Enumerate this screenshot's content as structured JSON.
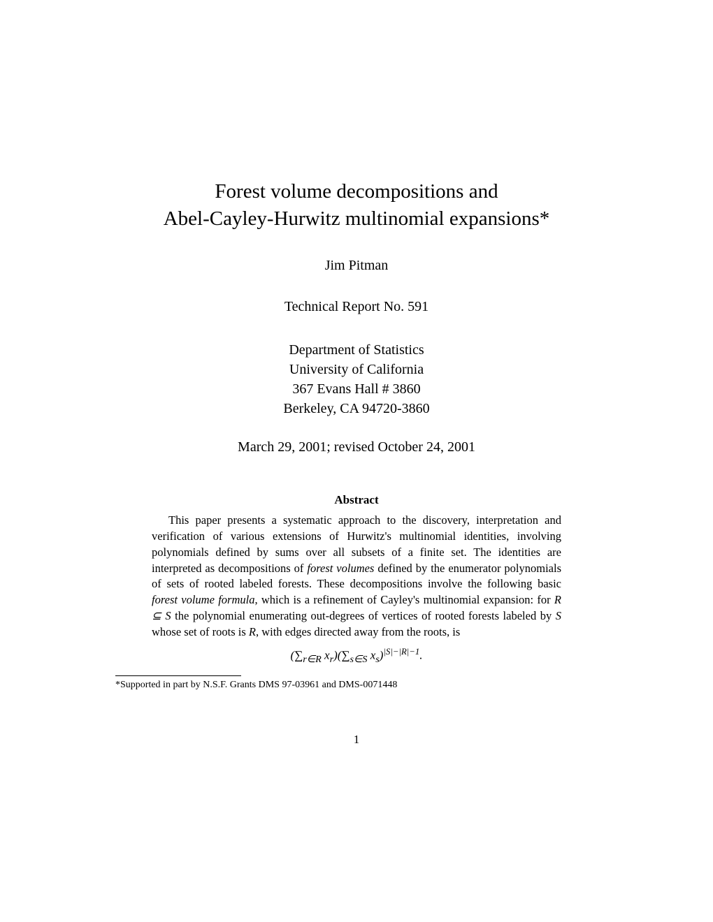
{
  "title_line1": "Forest volume decompositions and",
  "title_line2": "Abel-Cayley-Hurwitz multinomial expansions*",
  "author": "Jim Pitman",
  "report": "Technical Report No. 591",
  "affiliation_line1": "Department of Statistics",
  "affiliation_line2": "University of California",
  "affiliation_line3": "367 Evans Hall # 3860",
  "affiliation_line4": "Berkeley, CA 94720-3860",
  "date": "March 29, 2001; revised October 24, 2001",
  "abstract_heading": "Abstract",
  "abstract_text_1": "This paper presents a systematic approach to the discovery, interpretation and verification of various extensions of Hurwitz's multinomial identities, involving polynomials defined by sums over all subsets of a finite set. The identities are interpreted as decompositions of ",
  "abstract_em_1": "forest volumes",
  "abstract_text_2": " defined by the enumerator polynomials of sets of rooted labeled forests. These decompositions involve the following basic ",
  "abstract_em_2": "forest volume formula",
  "abstract_text_3": ", which is a refinement of Cayley's multinomial expansion: for ",
  "abstract_math_1": "R ⊆ S",
  "abstract_text_4": " the polynomial enumerating out-degrees of vertices of rooted forests labeled by ",
  "abstract_math_2": "S",
  "abstract_text_5": " whose set of roots is ",
  "abstract_math_3": "R",
  "abstract_text_6": ", with edges directed away from the roots, is",
  "footnote": "*Supported in part by N.S.F. Grants DMS 97-03961 and DMS-0071448",
  "page_number": "1"
}
